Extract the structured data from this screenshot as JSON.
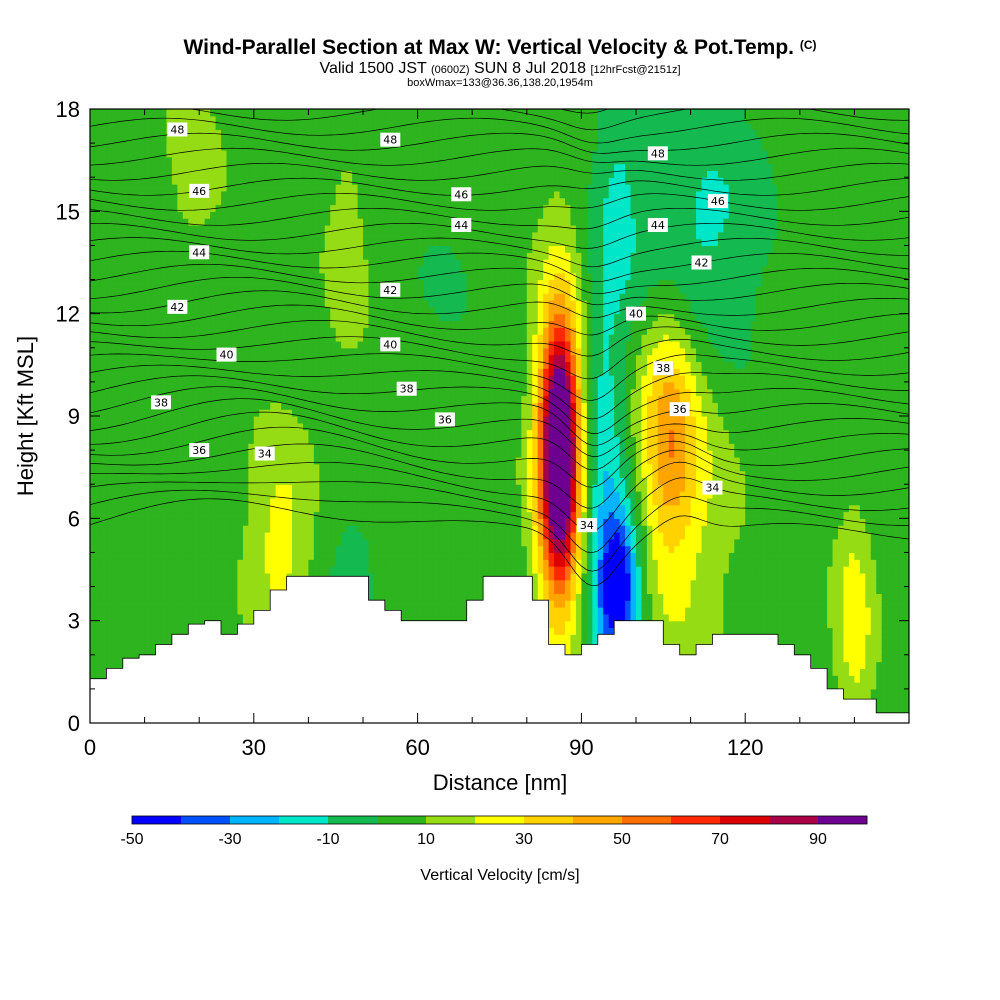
{
  "header": {
    "title_main": "Wind-Parallel Section at Max W: Vertical Velocity & Pot.Temp.",
    "title_copyright": "(C)",
    "valid_prefix": "Valid 1500 JST",
    "valid_utc": "(0600Z)",
    "valid_date": "SUN 8 Jul 2018",
    "forecast": "[12hrFcst@2151z]",
    "box_info": "boxWmax=133@36.36,138.20,1954m"
  },
  "colors": {
    "terrain": "#ffffff",
    "contour": "#000000",
    "background": "#ffffff"
  },
  "chart_data": {
    "type": "heatmap",
    "title": "Wind-Parallel Section at Max W: Vertical Velocity & Pot.Temp.",
    "xlabel": "Distance [nm]",
    "ylabel": "Height [Kft MSL]",
    "xlim": [
      0,
      150
    ],
    "ylim": [
      0,
      18
    ],
    "x_ticks": [
      0,
      30,
      60,
      90,
      120
    ],
    "y_ticks": [
      0,
      3,
      6,
      9,
      12,
      15,
      18
    ],
    "grid": false,
    "colorbar": {
      "label": "Vertical Velocity [cm/s]",
      "orientation": "horizontal",
      "placement": "bottom",
      "range": [
        -50,
        100
      ],
      "tick_labels": [
        -50,
        -30,
        -10,
        10,
        30,
        50,
        70,
        90
      ],
      "colors": [
        "#0000ff",
        "#0050ff",
        "#00b4ff",
        "#00e6c8",
        "#14b950",
        "#2db41e",
        "#96dc14",
        "#ffff00",
        "#ffd200",
        "#ffa500",
        "#ff6e00",
        "#ff2800",
        "#dc0000",
        "#aa0046",
        "#6e0091"
      ]
    },
    "w_field_cm_s": {
      "background": 5,
      "features": [
        {
          "x": 86,
          "y": 8,
          "sx": 2.4,
          "sy": 2.4,
          "value": 90
        },
        {
          "x": 86,
          "y": 7.5,
          "sx": 3.2,
          "sy": 4.2,
          "value": 40
        },
        {
          "x": 106,
          "y": 8.5,
          "sx": 3.5,
          "sy": 2.6,
          "value": 32
        },
        {
          "x": 109,
          "y": 7,
          "sx": 6.5,
          "sy": 4.5,
          "value": 16
        },
        {
          "x": 97,
          "y": 4,
          "sx": 2.8,
          "sy": 1.6,
          "value": -55
        },
        {
          "x": 94,
          "y": 7.5,
          "sx": 3.0,
          "sy": 4.5,
          "value": -22
        },
        {
          "x": 107,
          "y": 14,
          "sx": 6,
          "sy": 2.5,
          "value": -15
        },
        {
          "x": 116,
          "y": 14,
          "sx": 6,
          "sy": 3,
          "value": -14
        },
        {
          "x": 97,
          "y": 16,
          "sx": 3,
          "sy": 3,
          "value": -13
        },
        {
          "x": 35,
          "y": 5.3,
          "sx": 4.5,
          "sy": 2.2,
          "value": 20
        },
        {
          "x": 140,
          "y": 3,
          "sx": 2.5,
          "sy": 2.2,
          "value": 22
        },
        {
          "x": 47,
          "y": 14,
          "sx": 3,
          "sy": 2.5,
          "value": 10
        },
        {
          "x": 19,
          "y": 16,
          "sx": 4,
          "sy": 2,
          "value": 9
        },
        {
          "x": 48,
          "y": 5,
          "sx": 5,
          "sy": 1.6,
          "value": -8
        },
        {
          "x": 65,
          "y": 13,
          "sx": 4,
          "sy": 1.2,
          "value": -6
        }
      ]
    },
    "pot_temp_contours": {
      "units": "C",
      "labels": [
        {
          "text": "48",
          "x": 16,
          "y": 17.4
        },
        {
          "text": "48",
          "x": 55,
          "y": 17.1
        },
        {
          "text": "48",
          "x": 104,
          "y": 16.7
        },
        {
          "text": "46",
          "x": 20,
          "y": 15.6
        },
        {
          "text": "46",
          "x": 68,
          "y": 15.5
        },
        {
          "text": "46",
          "x": 115,
          "y": 15.3
        },
        {
          "text": "44",
          "x": 20,
          "y": 13.8
        },
        {
          "text": "44",
          "x": 68,
          "y": 14.6
        },
        {
          "text": "44",
          "x": 104,
          "y": 14.6
        },
        {
          "text": "42",
          "x": 16,
          "y": 12.2
        },
        {
          "text": "42",
          "x": 55,
          "y": 12.7
        },
        {
          "text": "42",
          "x": 112,
          "y": 13.5
        },
        {
          "text": "40",
          "x": 25,
          "y": 10.8
        },
        {
          "text": "40",
          "x": 55,
          "y": 11.1
        },
        {
          "text": "40",
          "x": 100,
          "y": 12.0
        },
        {
          "text": "38",
          "x": 13,
          "y": 9.4
        },
        {
          "text": "38",
          "x": 58,
          "y": 9.8
        },
        {
          "text": "38",
          "x": 105,
          "y": 10.4
        },
        {
          "text": "36",
          "x": 20,
          "y": 8.0
        },
        {
          "text": "36",
          "x": 65,
          "y": 8.9
        },
        {
          "text": "36",
          "x": 108,
          "y": 9.2
        },
        {
          "text": "34",
          "x": 32,
          "y": 7.9
        },
        {
          "text": "34",
          "x": 91,
          "y": 5.8
        },
        {
          "text": "34",
          "x": 114,
          "y": 6.9
        }
      ]
    },
    "terrain_kft": {
      "x": [
        0,
        3,
        6,
        9,
        12,
        15,
        18,
        21,
        24,
        27,
        30,
        33,
        36,
        39,
        42,
        45,
        48,
        51,
        54,
        57,
        60,
        63,
        66,
        69,
        72,
        75,
        78,
        81,
        84,
        87,
        90,
        93,
        96,
        99,
        102,
        105,
        108,
        111,
        114,
        117,
        120,
        123,
        126,
        129,
        132,
        135,
        138,
        141,
        144,
        147,
        150
      ],
      "h": [
        1.3,
        1.6,
        1.9,
        2.0,
        2.3,
        2.6,
        2.9,
        3.0,
        2.6,
        2.9,
        3.3,
        3.9,
        4.3,
        4.3,
        4.3,
        4.3,
        4.3,
        3.6,
        3.3,
        3.0,
        3.0,
        3.0,
        3.0,
        3.6,
        4.3,
        4.3,
        4.3,
        3.6,
        2.3,
        2.0,
        2.3,
        2.6,
        3.0,
        3.0,
        3.0,
        2.3,
        2.0,
        2.3,
        2.6,
        2.6,
        2.6,
        2.6,
        2.3,
        2.0,
        1.6,
        1.0,
        0.7,
        0.7,
        0.3,
        0.3,
        0.3
      ]
    }
  }
}
